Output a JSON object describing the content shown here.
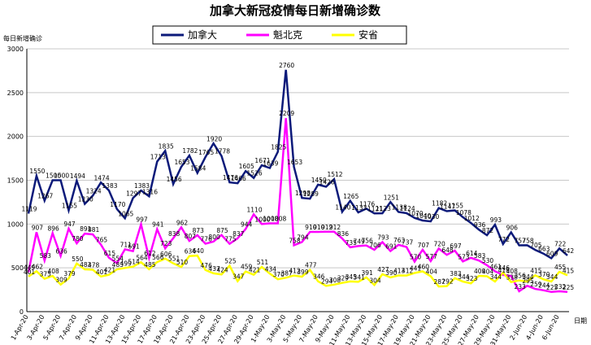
{
  "chart_data": {
    "type": "line",
    "title": "加拿大新冠疫情每日新增确诊数",
    "y_label": "每日新增确诊",
    "x_label": "日期",
    "categories": [
      "1-Apr-20",
      null,
      "3-Apr-20",
      null,
      "5-Apr-20",
      null,
      "7-Apr-20",
      null,
      "9-Apr-20",
      null,
      "11-Apr-20",
      null,
      "13-Apr-20",
      null,
      "15-Apr-20",
      null,
      "17-Apr-20",
      null,
      "19-Apr-20",
      null,
      "21-Apr-20",
      null,
      "23-Apr-20",
      null,
      "25-Apr-20",
      null,
      "27-Apr-20",
      null,
      "29-Apr-20",
      null,
      "1-May-20",
      null,
      "3-May-20",
      null,
      "5-May-20",
      null,
      "7-May-20",
      null,
      "9-May-20",
      null,
      "11-May-20",
      null,
      "13-May-20",
      null,
      "15-May-20",
      null,
      "17-May-20",
      null,
      "19-May-20",
      null,
      "21-May-20",
      null,
      "23-May-20",
      null,
      "25-May-20",
      null,
      "27-May-20",
      null,
      "29-May-20",
      null,
      "31-May-20",
      null,
      "2-Jun-20",
      null,
      "4-Jun-20",
      null,
      "6-Jun-20",
      null
    ],
    "series": [
      {
        "name": "加拿大",
        "color": "#0c1a7a",
        "values": [
          1119,
          1550,
          1267,
          1500,
          1500,
          1155,
          1494,
          1230,
          1324,
          1474,
          1383,
          1170,
          1065,
          1297,
          1383,
          1316,
          1713,
          1835,
          1456,
          1653,
          1782,
          1584,
          1765,
          1920,
          1778,
          1476,
          1466,
          1605,
          1526,
          1671,
          1639,
          1825,
          2760,
          1653,
          1298,
          1289,
          1450,
          1426,
          1512,
          1140,
          1265,
          1133,
          1176,
          1121,
          1123,
          1251,
          1138,
          1124,
          1070,
          1040,
          1030,
          1182,
          1147,
          1155,
          1078,
          1012,
          936,
          872,
          993,
          772,
          906,
          757,
          758,
          705,
          663,
          609,
          722,
          642
        ]
      },
      {
        "name": "魁北克",
        "color": "#ff00ff",
        "values": [
          449,
          907,
          583,
          896,
          636,
          947,
          780,
          891,
          881,
          765,
          615,
          554,
          711,
          691,
          997,
          612,
          941,
          723,
          838,
          962,
          807,
          873,
          776,
          800,
          875,
          775,
          837,
          944,
          1110,
          1000,
          1008,
          1008,
          2209,
          758,
          794,
          910,
          910,
          912,
          912,
          836,
          735,
          749,
          756,
          706,
          793,
          691,
          763,
          737,
          570,
          707,
          577,
          720,
          648,
          697,
          573,
          614,
          583,
          530,
          461,
          419,
          408,
          233,
          295,
          259,
          244,
          225,
          232,
          225
        ]
      },
      {
        "name": "安省",
        "color": "#ffff00",
        "values": [
          401,
          462,
          375,
          408,
          309,
          379,
          550,
          483,
          478,
          401,
          421,
          483,
          499,
          514,
          564,
          485,
          566,
          606,
          551,
          510,
          634,
          640,
          476,
          437,
          424,
          525,
          347,
          459,
          421,
          511,
          434,
          370,
          387,
          412,
          399,
          477,
          346,
          294,
          308,
          329,
          345,
          341,
          391,
          304,
          427,
          390,
          413,
          412,
          441,
          460,
          404,
          287,
          292,
          383,
          344,
          323,
          409,
          404,
          344,
          446,
          338,
          356,
          344,
          415,
          370,
          344,
          455,
          415
        ]
      }
    ],
    "ylim": [
      0,
      3000
    ],
    "yticks": [
      0,
      500,
      1000,
      1500,
      2000,
      2500,
      3000
    ],
    "grid": true,
    "legend": "top"
  }
}
